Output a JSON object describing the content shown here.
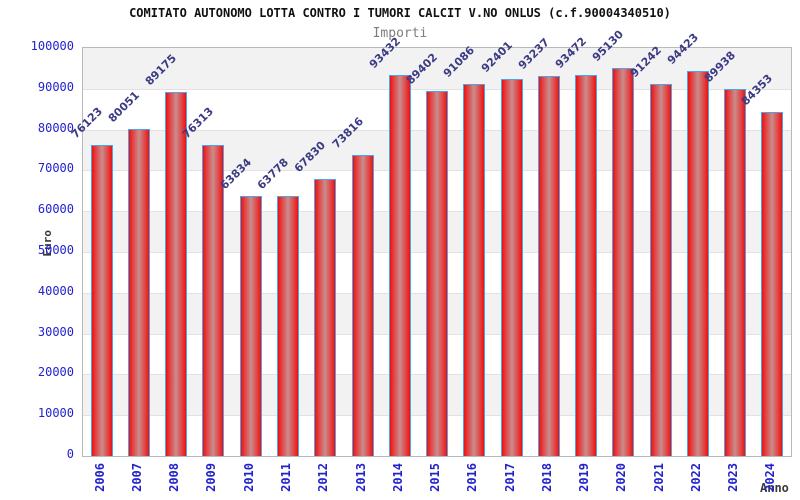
{
  "chart_data": {
    "type": "bar",
    "title": "COMITATO AUTONOMO LOTTA CONTRO I TUMORI CALCIT V.NO ONLUS (c.f.90004340510)",
    "subtitle": "Importi",
    "xlabel": "Anno",
    "ylabel": "Euro",
    "categories": [
      "2006",
      "2007",
      "2008",
      "2009",
      "2010",
      "2011",
      "2012",
      "2013",
      "2014",
      "2015",
      "2016",
      "2017",
      "2018",
      "2019",
      "2020",
      "2021",
      "2022",
      "2023",
      "2024"
    ],
    "values": [
      76123,
      80051,
      89175,
      76313,
      63834,
      63778,
      67830,
      73816,
      93432,
      89402,
      91086,
      92401,
      93237,
      93472,
      95130,
      91242,
      94423,
      89938,
      84353
    ],
    "ylim": [
      0,
      100000
    ],
    "ytick_step": 10000,
    "yticks": [
      0,
      10000,
      20000,
      30000,
      40000,
      50000,
      60000,
      70000,
      80000,
      90000,
      100000
    ],
    "grid": "horizontal gridlines every 10000 with alternating gray/white bands (top band gray)",
    "legend": "none",
    "bar_value_labels": "shown above each bar, rotated 45 degrees"
  },
  "colors": {
    "title": "#111111",
    "subtitle": "#7d7d7d",
    "axis_tick": "#2323cc",
    "value_label": "#3b3b85",
    "axis_title": "#3a3a3a",
    "bar_fill_edge": "#ed1111",
    "bar_fill_center": "#c98d8d",
    "bar_border": "#4fa3e8",
    "band_gray": "#f2f2f2",
    "grid_line": "#e2e2e2",
    "plot_border": "#b9b9b9"
  }
}
